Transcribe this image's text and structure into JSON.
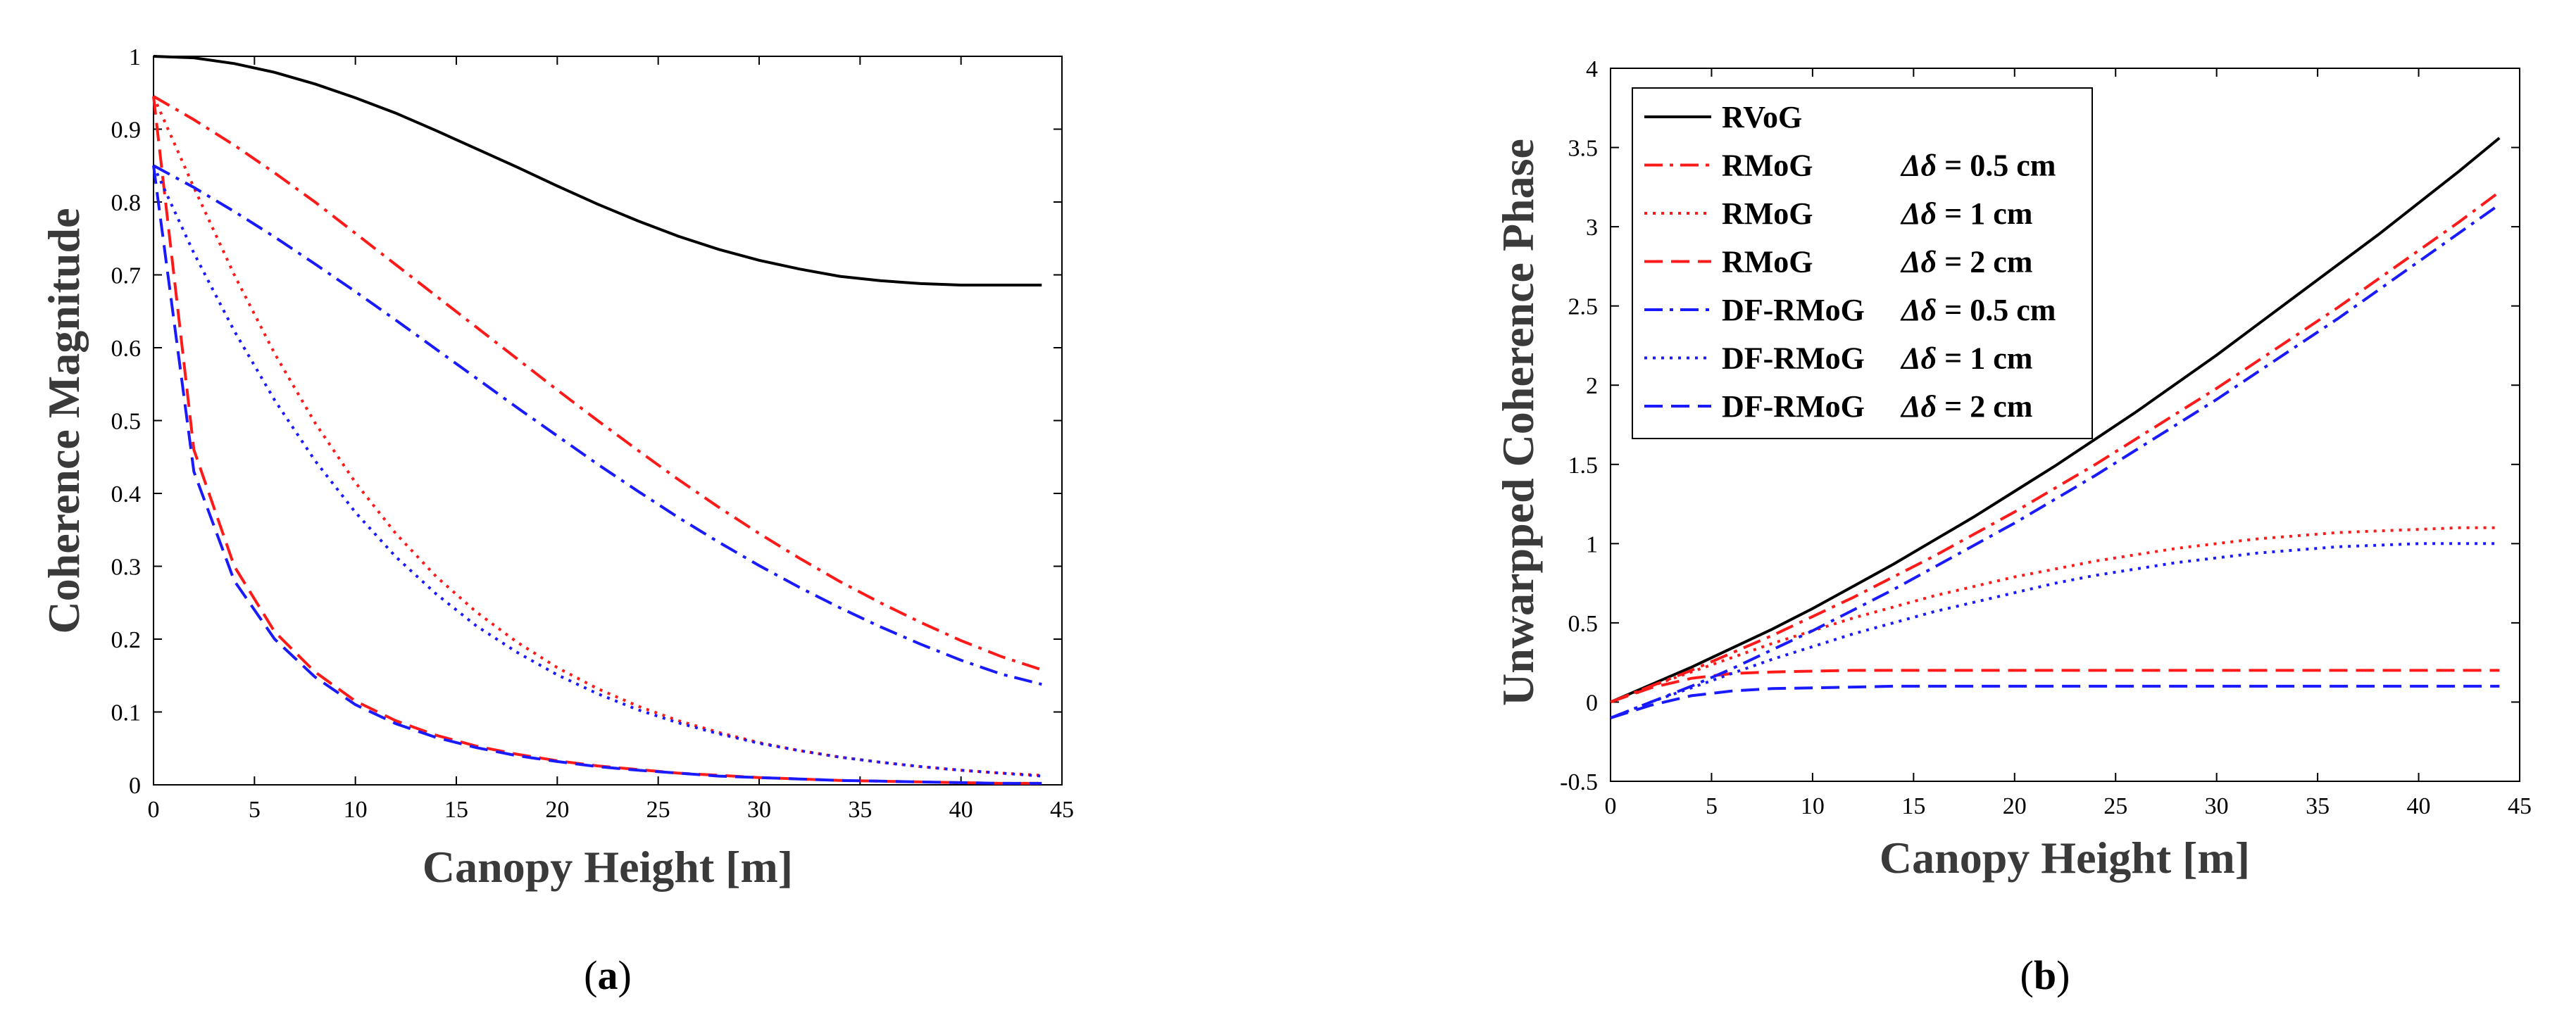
{
  "colors": {
    "black": "#000000",
    "red": "#ff1a1a",
    "blue": "#1a1aff"
  },
  "chart_data": [
    {
      "type": "line",
      "panel": "a",
      "caption": {
        "open": "(",
        "letter": "a",
        "close": ")"
      },
      "xlabel": "Canopy Height [m]",
      "ylabel": "Coherence Magnitude",
      "xlim": [
        0,
        45
      ],
      "ylim": [
        0,
        1
      ],
      "xticks": [
        0,
        5,
        10,
        15,
        20,
        25,
        30,
        35,
        40,
        45
      ],
      "yticks": [
        0,
        0.1,
        0.2,
        0.3,
        0.4,
        0.5,
        0.6,
        0.7,
        0.8,
        0.9,
        1
      ],
      "x": [
        0,
        2,
        4,
        6,
        8,
        10,
        12,
        14,
        16,
        18,
        20,
        22,
        24,
        26,
        28,
        30,
        32,
        34,
        36,
        38,
        40,
        42,
        44
      ],
      "series": [
        {
          "name": "RVoG",
          "color": "black",
          "style": "solid",
          "values": [
            1.0,
            0.998,
            0.99,
            0.978,
            0.962,
            0.943,
            0.922,
            0.898,
            0.873,
            0.848,
            0.822,
            0.797,
            0.774,
            0.753,
            0.735,
            0.72,
            0.708,
            0.698,
            0.692,
            0.688,
            0.686,
            0.686,
            0.686
          ]
        },
        {
          "name": "RMoG Δδ = 0.5 cm",
          "color": "red",
          "style": "dashdot",
          "values": [
            0.945,
            0.913,
            0.878,
            0.84,
            0.8,
            0.757,
            0.714,
            0.671,
            0.628,
            0.585,
            0.542,
            0.5,
            0.459,
            0.419,
            0.381,
            0.345,
            0.311,
            0.279,
            0.25,
            0.223,
            0.198,
            0.176,
            0.158
          ]
        },
        {
          "name": "RMoG Δδ = 1 cm",
          "color": "red",
          "style": "dotted",
          "values": [
            0.945,
            0.82,
            0.7,
            0.592,
            0.497,
            0.415,
            0.345,
            0.286,
            0.237,
            0.196,
            0.161,
            0.132,
            0.108,
            0.088,
            0.072,
            0.058,
            0.047,
            0.038,
            0.031,
            0.025,
            0.02,
            0.016,
            0.013
          ]
        },
        {
          "name": "RMoG Δδ = 2 cm",
          "color": "red",
          "style": "dashed",
          "values": [
            0.945,
            0.46,
            0.3,
            0.21,
            0.155,
            0.115,
            0.088,
            0.068,
            0.053,
            0.042,
            0.033,
            0.026,
            0.021,
            0.016,
            0.013,
            0.01,
            0.008,
            0.006,
            0.005,
            0.004,
            0.003,
            0.002,
            0.002
          ]
        },
        {
          "name": "DF-RMoG Δδ = 0.5 cm",
          "color": "blue",
          "style": "dashdot",
          "values": [
            0.85,
            0.82,
            0.787,
            0.752,
            0.715,
            0.677,
            0.638,
            0.598,
            0.558,
            0.518,
            0.479,
            0.44,
            0.403,
            0.367,
            0.333,
            0.301,
            0.271,
            0.243,
            0.217,
            0.193,
            0.171,
            0.152,
            0.138
          ]
        },
        {
          "name": "DF-RMoG Δδ = 1 cm",
          "color": "blue",
          "style": "dotted",
          "values": [
            0.85,
            0.73,
            0.623,
            0.528,
            0.445,
            0.374,
            0.313,
            0.262,
            0.218,
            0.182,
            0.151,
            0.125,
            0.103,
            0.085,
            0.07,
            0.057,
            0.047,
            0.038,
            0.031,
            0.025,
            0.02,
            0.016,
            0.012
          ]
        },
        {
          "name": "DF-RMoG Δδ = 2 cm",
          "color": "blue",
          "style": "dashed",
          "values": [
            0.85,
            0.43,
            0.28,
            0.2,
            0.148,
            0.11,
            0.084,
            0.065,
            0.051,
            0.04,
            0.032,
            0.025,
            0.02,
            0.016,
            0.012,
            0.01,
            0.008,
            0.006,
            0.005,
            0.004,
            0.003,
            0.002,
            0.002
          ]
        }
      ]
    },
    {
      "type": "line",
      "panel": "b",
      "caption": {
        "open": "(",
        "letter": "b",
        "close": ")"
      },
      "xlabel": "Canopy Height [m]",
      "ylabel": "Unwarpped Coherence Phase",
      "xlim": [
        0,
        45
      ],
      "ylim": [
        -0.5,
        4
      ],
      "xticks": [
        0,
        5,
        10,
        15,
        20,
        25,
        30,
        35,
        40,
        45
      ],
      "yticks": [
        -0.5,
        0,
        0.5,
        1,
        1.5,
        2,
        2.5,
        3,
        3.5,
        4
      ],
      "legend": {
        "position": "top-left"
      },
      "x": [
        0,
        2,
        4,
        6,
        8,
        10,
        12,
        14,
        16,
        18,
        20,
        22,
        24,
        26,
        28,
        30,
        32,
        34,
        36,
        38,
        40,
        42,
        44
      ],
      "series": [
        {
          "name": "RVoG",
          "param": "",
          "color": "black",
          "style": "solid",
          "values": [
            0.0,
            0.11,
            0.22,
            0.34,
            0.46,
            0.59,
            0.73,
            0.87,
            1.02,
            1.17,
            1.33,
            1.49,
            1.66,
            1.83,
            2.01,
            2.19,
            2.38,
            2.57,
            2.76,
            2.95,
            3.15,
            3.35,
            3.56
          ]
        },
        {
          "name": "RMoG",
          "param": "Δδ = 0.5 cm",
          "color": "red",
          "style": "dashdot",
          "values": [
            0.0,
            0.1,
            0.2,
            0.31,
            0.42,
            0.54,
            0.66,
            0.79,
            0.92,
            1.06,
            1.2,
            1.35,
            1.5,
            1.66,
            1.82,
            1.98,
            2.15,
            2.32,
            2.49,
            2.67,
            2.85,
            3.03,
            3.22
          ]
        },
        {
          "name": "RMoG",
          "param": "Δδ = 1 cm",
          "color": "red",
          "style": "dotted",
          "values": [
            0.0,
            0.1,
            0.19,
            0.28,
            0.37,
            0.45,
            0.53,
            0.6,
            0.67,
            0.73,
            0.79,
            0.84,
            0.89,
            0.93,
            0.97,
            1.0,
            1.03,
            1.05,
            1.07,
            1.08,
            1.09,
            1.1,
            1.1
          ]
        },
        {
          "name": "RMoG",
          "param": "Δδ = 2 cm",
          "color": "red",
          "style": "dashed",
          "values": [
            0.0,
            0.09,
            0.15,
            0.18,
            0.19,
            0.195,
            0.2,
            0.2,
            0.2,
            0.2,
            0.2,
            0.2,
            0.2,
            0.2,
            0.2,
            0.2,
            0.2,
            0.2,
            0.2,
            0.2,
            0.2,
            0.2,
            0.2
          ]
        },
        {
          "name": "DF-RMoG",
          "param": "Δδ = 0.5 cm",
          "color": "blue",
          "style": "dashdot",
          "values": [
            -0.1,
            0.0,
            0.1,
            0.21,
            0.33,
            0.45,
            0.58,
            0.71,
            0.85,
            0.99,
            1.13,
            1.28,
            1.43,
            1.59,
            1.75,
            1.91,
            2.08,
            2.25,
            2.42,
            2.6,
            2.78,
            2.96,
            3.14
          ]
        },
        {
          "name": "DF-RMoG",
          "param": "Δδ = 1 cm",
          "color": "blue",
          "style": "dotted",
          "values": [
            -0.1,
            0.0,
            0.09,
            0.18,
            0.27,
            0.35,
            0.43,
            0.5,
            0.57,
            0.63,
            0.69,
            0.75,
            0.8,
            0.84,
            0.88,
            0.91,
            0.94,
            0.96,
            0.98,
            0.99,
            1.0,
            1.0,
            1.0
          ]
        },
        {
          "name": "DF-RMoG",
          "param": "Δδ = 2 cm",
          "color": "blue",
          "style": "dashed",
          "values": [
            -0.1,
            -0.02,
            0.04,
            0.07,
            0.085,
            0.09,
            0.095,
            0.1,
            0.1,
            0.1,
            0.1,
            0.1,
            0.1,
            0.1,
            0.1,
            0.1,
            0.1,
            0.1,
            0.1,
            0.1,
            0.1,
            0.1,
            0.1
          ]
        }
      ]
    }
  ]
}
